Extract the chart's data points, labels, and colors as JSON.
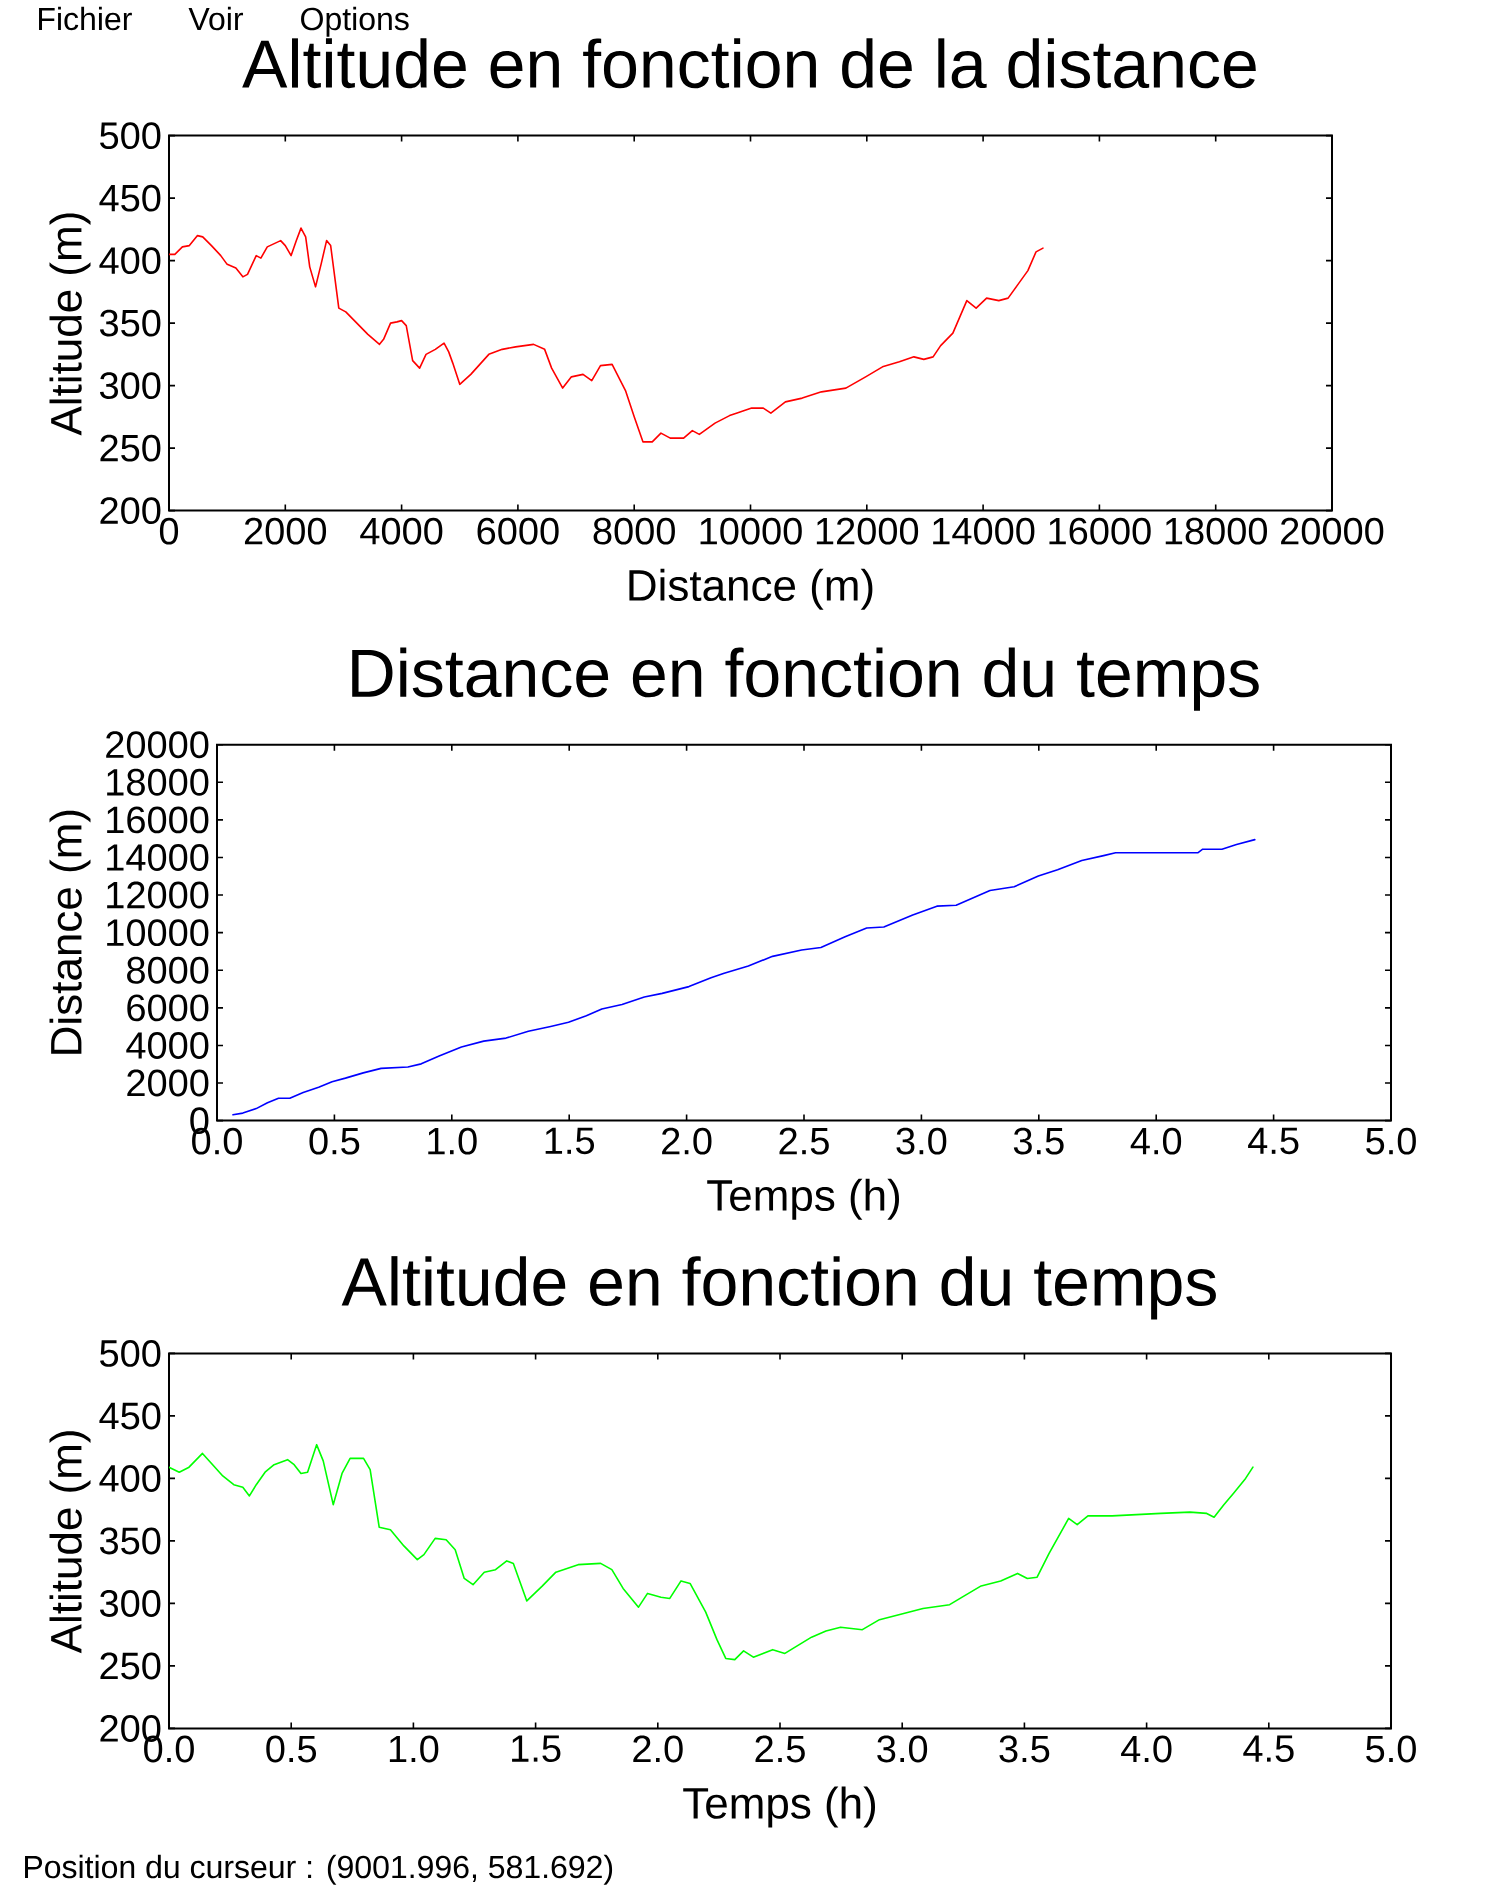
{
  "chart_data": [
    {
      "type": "line",
      "title": "Altitude en fonction de la distance",
      "xlabel": "Distance (m)",
      "ylabel": "Altitude (m)",
      "color": "#ff0000",
      "annotations": [
        "Fichier",
        "Voir",
        "Options"
      ],
      "xlim": [
        0,
        20000
      ],
      "xticks": [
        0,
        2000,
        4000,
        6000,
        8000,
        10000,
        12000,
        14000,
        16000,
        18000,
        20000
      ],
      "ylim": [
        200,
        500
      ],
      "yticks": [
        200,
        250,
        300,
        350,
        400,
        450,
        500
      ],
      "x": [
        0,
        100,
        230,
        350,
        490,
        580,
        730,
        890,
        1000,
        1150,
        1270,
        1350,
        1500,
        1580,
        1690,
        1920,
        2000,
        2100,
        2190,
        2270,
        2350,
        2420,
        2520,
        2620,
        2710,
        2780,
        2920,
        3040,
        3230,
        3420,
        3620,
        3690,
        3810,
        3920,
        4000,
        4080,
        4190,
        4310,
        4420,
        4580,
        4730,
        4810,
        4880,
        5000,
        5190,
        5500,
        5730,
        5960,
        6270,
        6460,
        6580,
        6770,
        6920,
        7120,
        7270,
        7420,
        7620,
        7850,
        8000,
        8150,
        8310,
        8460,
        8620,
        8850,
        9000,
        9120,
        9390,
        9640,
        9770,
        10020,
        10220,
        10350,
        10600,
        10890,
        11220,
        11640,
        11980,
        12270,
        12560,
        12810,
        12980,
        13140,
        13270,
        13480,
        13720,
        13880,
        14060,
        14270,
        14430,
        14600,
        14770,
        14910,
        15030
      ],
      "values": [
        405,
        405,
        411,
        412,
        420,
        419,
        412,
        404,
        397,
        394,
        387,
        389,
        404,
        402,
        411,
        416,
        412,
        404,
        416,
        426,
        419,
        395,
        379,
        398,
        416,
        412,
        362,
        359,
        350,
        341,
        333,
        337,
        350,
        351,
        352,
        348,
        320,
        314,
        325,
        329,
        334,
        327,
        318,
        301,
        309,
        325,
        329,
        331,
        333,
        329,
        314,
        298,
        307,
        309,
        304,
        316,
        317,
        296,
        275,
        255,
        255,
        262,
        258,
        258,
        264,
        261,
        270,
        276,
        278,
        282,
        282,
        278,
        287,
        290,
        295,
        298,
        307,
        315,
        319,
        323,
        321,
        323,
        332,
        342,
        368,
        362,
        370,
        368,
        370,
        381,
        392,
        407,
        410
      ]
    },
    {
      "type": "line",
      "title": "Distance en fonction du temps",
      "xlabel": "Temps (h)",
      "ylabel": "Distance (m)",
      "color": "#0000ff",
      "xlim": [
        0,
        5
      ],
      "xticks": [
        {
          "value": 0,
          "label": "0.0"
        },
        0.5,
        {
          "value": 1,
          "label": "1.0"
        },
        1.5,
        {
          "value": 2,
          "label": "2.0"
        },
        2.5,
        {
          "value": 3,
          "label": "3.0"
        },
        3.5,
        {
          "value": 4,
          "label": "4.0"
        },
        4.5,
        {
          "value": 5,
          "label": "5.0"
        }
      ],
      "ylim": [
        0,
        20000
      ],
      "yticks": [
        0,
        2000,
        4000,
        6000,
        8000,
        10000,
        12000,
        14000,
        16000,
        18000,
        20000
      ],
      "x": [
        0.068,
        0.11,
        0.167,
        0.215,
        0.262,
        0.31,
        0.367,
        0.433,
        0.49,
        0.547,
        0.623,
        0.699,
        0.813,
        0.87,
        0.946,
        1.041,
        1.136,
        1.231,
        1.326,
        1.421,
        1.497,
        1.573,
        1.639,
        1.725,
        1.82,
        1.896,
        2.01,
        2.104,
        2.16,
        2.263,
        2.366,
        2.49,
        2.572,
        2.675,
        2.767,
        2.84,
        2.963,
        3.066,
        3.148,
        3.292,
        3.395,
        3.498,
        3.58,
        3.683,
        3.776,
        3.827,
        4.012,
        4.177,
        4.198,
        4.28,
        4.342,
        4.42
      ],
      "values": [
        310,
        400,
        640,
        950,
        1190,
        1190,
        1500,
        1780,
        2070,
        2260,
        2540,
        2780,
        2850,
        3020,
        3440,
        3920,
        4230,
        4390,
        4750,
        5010,
        5230,
        5580,
        5940,
        6180,
        6580,
        6770,
        7130,
        7600,
        7840,
        8230,
        8740,
        9080,
        9210,
        9780,
        10250,
        10300,
        10940,
        11410,
        11460,
        12240,
        12440,
        13010,
        13350,
        13840,
        14100,
        14250,
        14250,
        14250,
        14440,
        14440,
        14690,
        14950
      ]
    },
    {
      "type": "line",
      "title": "Altitude en fonction du temps",
      "xlabel": "Temps (h)",
      "ylabel": "Altitude (m)",
      "color": "#00ff00",
      "annotations": [
        "Position du curseur : (9001.996, 581.692)"
      ],
      "xlim": [
        0,
        5
      ],
      "xticks": [
        {
          "value": 0,
          "label": "0.0"
        },
        0.5,
        {
          "value": 1,
          "label": "1.0"
        },
        1.5,
        {
          "value": 2,
          "label": "2.0"
        },
        2.5,
        {
          "value": 3,
          "label": "3.0"
        },
        3.5,
        {
          "value": 4,
          "label": "4.0"
        },
        4.5,
        {
          "value": 5,
          "label": "5.0"
        }
      ],
      "ylim": [
        200,
        500
      ],
      "yticks": [
        200,
        250,
        300,
        350,
        400,
        450,
        500
      ],
      "x": [
        0,
        0.042,
        0.082,
        0.137,
        0.174,
        0.22,
        0.265,
        0.302,
        0.329,
        0.357,
        0.393,
        0.43,
        0.485,
        0.512,
        0.54,
        0.567,
        0.604,
        0.631,
        0.672,
        0.708,
        0.741,
        0.796,
        0.823,
        0.86,
        0.906,
        0.961,
        1.016,
        1.043,
        1.089,
        1.134,
        1.171,
        1.208,
        1.244,
        1.29,
        1.336,
        1.382,
        1.409,
        1.464,
        1.528,
        1.583,
        1.674,
        1.766,
        1.812,
        1.858,
        1.921,
        1.958,
        2.013,
        2.049,
        2.095,
        2.132,
        2.196,
        2.242,
        2.278,
        2.315,
        2.351,
        2.391,
        2.47,
        2.52,
        2.629,
        2.688,
        2.748,
        2.837,
        2.907,
        3.006,
        3.085,
        3.194,
        3.254,
        3.323,
        3.403,
        3.472,
        3.512,
        3.552,
        3.601,
        3.681,
        3.716,
        3.76,
        3.859,
        4.058,
        4.177,
        4.246,
        4.276,
        4.316,
        4.355,
        4.405,
        4.435
      ],
      "values": [
        409,
        405,
        409,
        420,
        412,
        402,
        395,
        393,
        386,
        395,
        405,
        411,
        415,
        411,
        404,
        405,
        427,
        414,
        379,
        404,
        416,
        416,
        407,
        361,
        359,
        346,
        335,
        339,
        352,
        351,
        343,
        320,
        315,
        325,
        327,
        334,
        332,
        302,
        314,
        325,
        331,
        332,
        327,
        312,
        297,
        308,
        305,
        304,
        318,
        316,
        293,
        271,
        256,
        255,
        262,
        257,
        263,
        260,
        273,
        278,
        281,
        279,
        287,
        292,
        296,
        299,
        306,
        314,
        318,
        324,
        320,
        321,
        340,
        368,
        363,
        370,
        370,
        372,
        373,
        372,
        369,
        379,
        388,
        400,
        409
      ]
    }
  ]
}
